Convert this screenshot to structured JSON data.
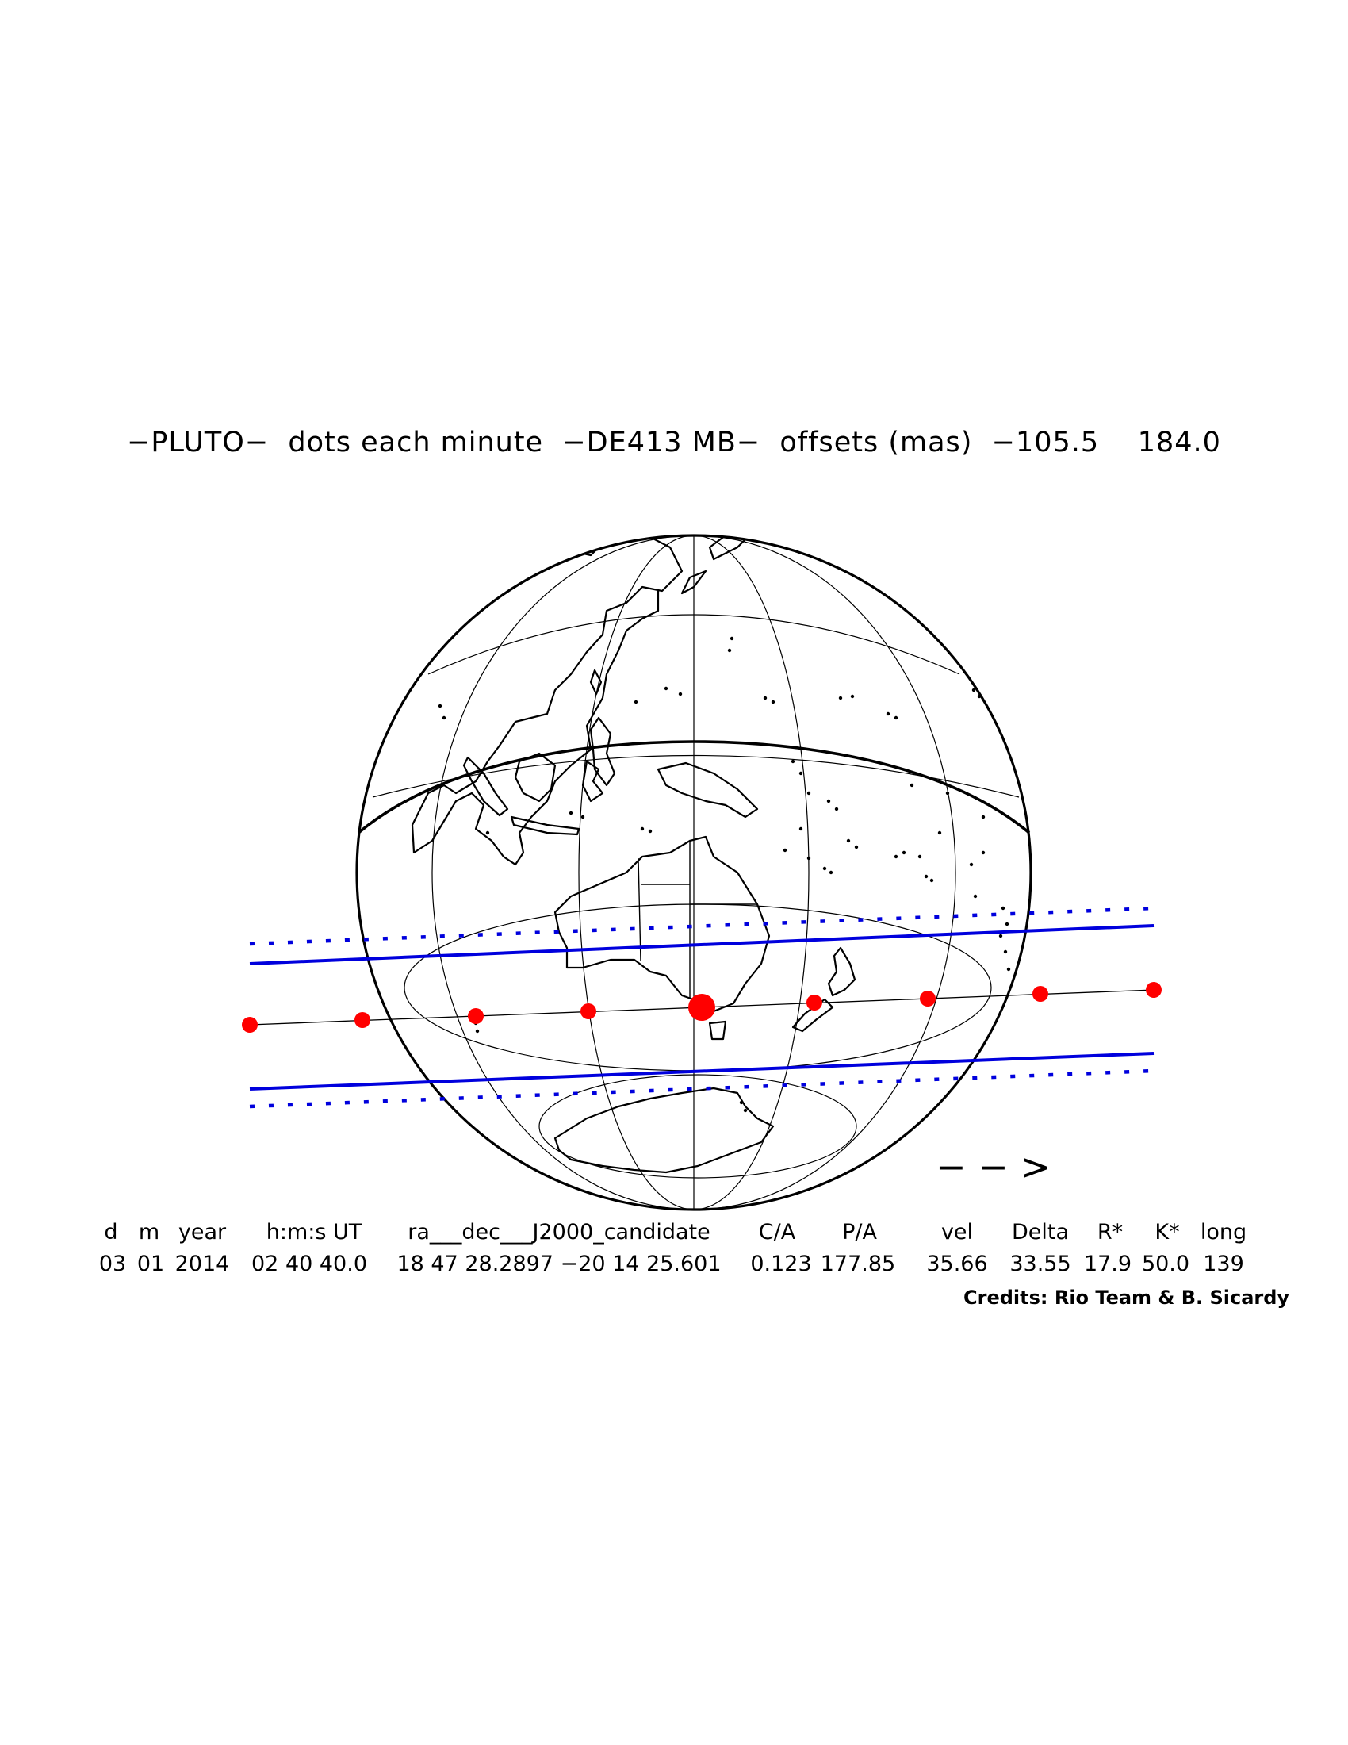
{
  "title": "−PLUTO−  dots each minute  −DE413 MB−  offsets (mas)  −105.5    184.0",
  "direction_arrow_text": "− − >",
  "table": {
    "headers": [
      "d",
      "m",
      "year",
      "h:m:s UT",
      "ra___dec___J2000_candidate",
      "C/A",
      "P/A",
      "vel",
      "Delta",
      "R*",
      "K*",
      "long"
    ],
    "values": [
      "03",
      "01",
      "2014",
      "02 40 40.0",
      "18 47 28.2897 −20 14 25.601",
      "0.123",
      "177.85",
      "35.66",
      "33.55",
      "17.9",
      "50.0",
      "139"
    ]
  },
  "credits": "Credits: Rio Team & B. Sicardy",
  "colors": {
    "shadow_path": "#0000dd",
    "occultation_dots": "#ff0000",
    "ink": "#000000"
  }
}
